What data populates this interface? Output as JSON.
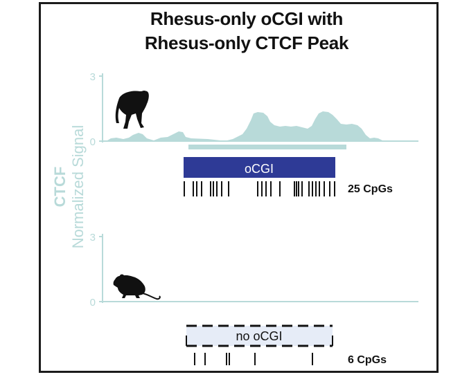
{
  "title_line1": "Rhesus-only oCGI with",
  "title_line2": "Rhesus-only CTCF Peak",
  "y_label_line1": "CTCF",
  "y_label_line2": "Normalized Signal",
  "tracks": {
    "rhesus": {
      "y_max_label": "3",
      "y_min_label": "0",
      "icon": "monkey-icon",
      "ocgi_label": "oCGI",
      "cpg_label": "25 CpGs",
      "cpg_count": 25
    },
    "mouse": {
      "y_max_label": "3",
      "y_min_label": "0",
      "icon": "mouse-icon",
      "ocgi_label": "no oCGI",
      "cpg_label": "6 CpGs",
      "cpg_count": 6
    }
  },
  "colors": {
    "signal": "#b8dad9",
    "ocgi_fill": "#2e3a96",
    "no_ocgi_fill": "#e6ecf7",
    "text": "#111111"
  }
}
